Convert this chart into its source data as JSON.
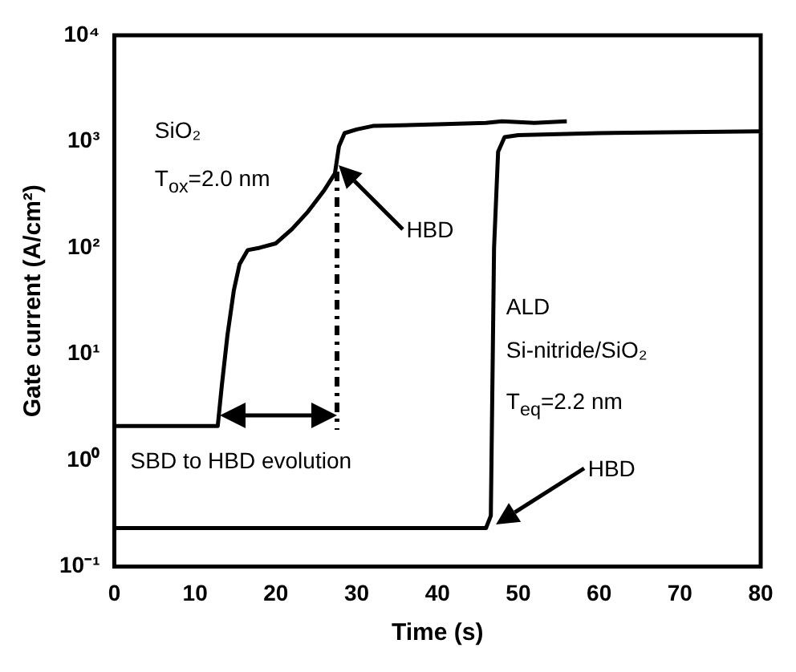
{
  "chart_data": {
    "type": "line",
    "xlabel": "Time (s)",
    "ylabel": "Gate current (A/cm²)",
    "xlim": [
      0,
      80
    ],
    "xticks": [
      0,
      10,
      20,
      30,
      40,
      50,
      60,
      70,
      80
    ],
    "ylim": [
      0.1,
      10000
    ],
    "yticks": [
      {
        "value": 0.1,
        "label": "10⁻¹"
      },
      {
        "value": 1,
        "label": "10⁰"
      },
      {
        "value": 10,
        "label": "10¹"
      },
      {
        "value": 100,
        "label": "10²"
      },
      {
        "value": 1000,
        "label": "10³"
      },
      {
        "value": 10000,
        "label": "10⁴"
      }
    ],
    "log": "y",
    "grid": false,
    "legend": false,
    "marker": "none",
    "line_style": "solid",
    "series": [
      {
        "color": "#000000",
        "x": [
          0,
          12.8,
          13.3,
          14,
          14.8,
          15.5,
          16.5,
          18,
          20,
          22,
          24,
          26,
          27.3,
          27.8,
          28.5,
          30,
          32,
          40,
          46,
          48,
          52,
          56
        ],
        "values": [
          2.1,
          2.1,
          5,
          15,
          40,
          70,
          95,
          100,
          110,
          150,
          220,
          350,
          500,
          900,
          1200,
          1300,
          1400,
          1450,
          1500,
          1550,
          1500,
          1550
        ]
      },
      {
        "color": "#000000",
        "x": [
          0,
          46,
          46.6,
          47,
          47.5,
          48.3,
          50,
          60,
          80
        ],
        "values": [
          0.23,
          0.23,
          0.3,
          100,
          800,
          1100,
          1150,
          1200,
          1250
        ]
      }
    ],
    "annotations": [
      "SiO₂",
      "T$_{ox}$=2.0 nm",
      "ALD",
      "Si-nitride/SiO₂",
      "T$_{eq}$=2.2 nm",
      "SBD to HBD evolution",
      "HBD",
      "HBD"
    ]
  }
}
